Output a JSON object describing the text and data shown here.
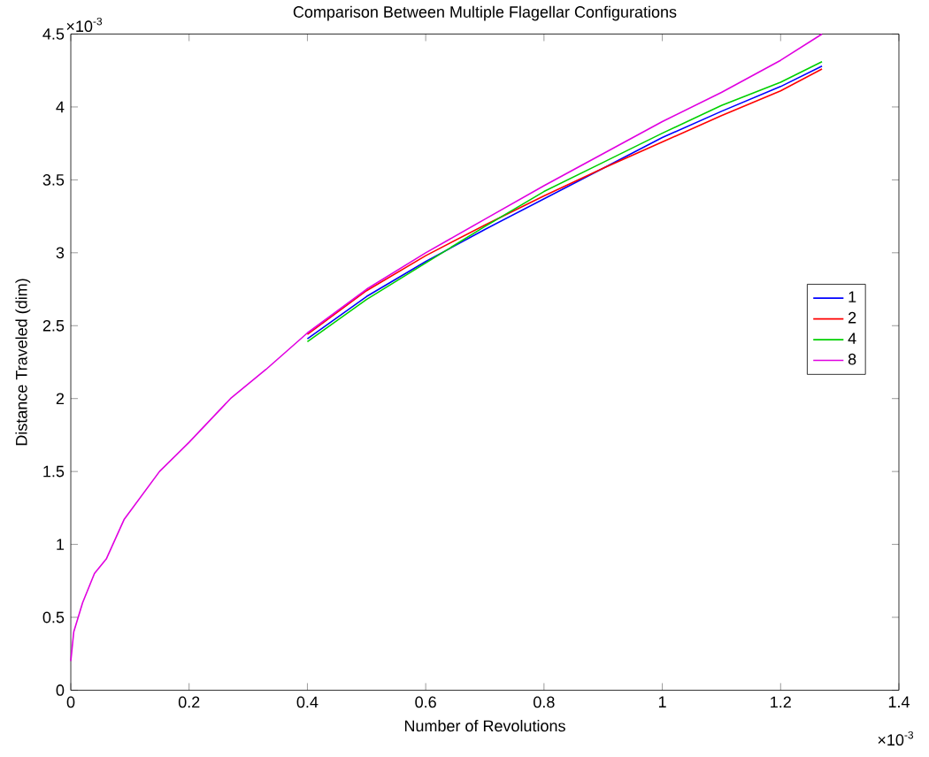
{
  "chart_data": {
    "type": "line",
    "title": "Comparison Between Multiple Flagellar Configurations",
    "xlabel": "Number of Revolutions",
    "ylabel": "Distance Traveled (dim)",
    "annotations": [
      "×10$^{-3}$",
      "×10$^{-3}$"
    ],
    "x": [
      0,
      0.005,
      0.02,
      0.04,
      0.06,
      0.09,
      0.15,
      0.2,
      0.27,
      0.33,
      0.4,
      0.5,
      0.6,
      0.7,
      0.8,
      0.9,
      1.0,
      1.1,
      1.2,
      1.27
    ],
    "series": [
      {
        "name": "1",
        "color": "#0000ff",
        "values": [
          null,
          null,
          null,
          null,
          null,
          null,
          null,
          null,
          null,
          null,
          2.41,
          2.7,
          2.94,
          3.16,
          3.37,
          3.58,
          3.79,
          3.97,
          4.14,
          4.28
        ]
      },
      {
        "name": "2",
        "color": "#ff0000",
        "values": [
          null,
          null,
          null,
          null,
          null,
          null,
          null,
          null,
          null,
          null,
          2.44,
          2.74,
          2.98,
          3.19,
          3.39,
          3.58,
          3.76,
          3.94,
          4.11,
          4.26
        ]
      },
      {
        "name": "4",
        "color": "#00d000",
        "values": [
          null,
          null,
          null,
          null,
          null,
          null,
          null,
          null,
          null,
          null,
          2.39,
          2.68,
          2.93,
          3.18,
          3.42,
          3.62,
          3.82,
          4.01,
          4.17,
          4.31
        ]
      },
      {
        "name": "8",
        "color": "#e000e0",
        "values": [
          0.2,
          0.4,
          0.6,
          0.8,
          0.9,
          1.17,
          1.5,
          1.7,
          2.0,
          2.2,
          2.45,
          2.75,
          3.0,
          3.23,
          3.46,
          3.68,
          3.9,
          4.1,
          4.32,
          4.5
        ]
      }
    ],
    "xlim": [
      0,
      1.4
    ],
    "xticks": [
      0,
      0.2,
      0.4,
      0.6,
      0.8,
      1,
      1.2,
      1.4
    ],
    "ylim": [
      0,
      4.5
    ],
    "yticks": [
      0,
      0.5,
      1,
      1.5,
      2,
      2.5,
      3,
      3.5,
      4,
      4.5
    ],
    "legend": "right",
    "grid": false
  }
}
